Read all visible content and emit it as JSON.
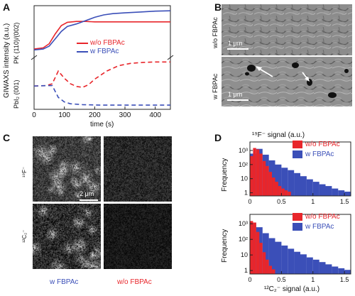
{
  "panels": {
    "A": {
      "letter": "A"
    },
    "B": {
      "letter": "B"
    },
    "C": {
      "letter": "C"
    },
    "D": {
      "letter": "D"
    }
  },
  "panelA": {
    "ylabel_outer": "GIWAXS  intensity (a.u.)",
    "ylabel_top": "PK (110)/(002)",
    "ylabel_bottom": "PbI₂ (001)",
    "xlabel": "time (s)",
    "legend": [
      {
        "label": "w/o FBPAc",
        "color": "#e8262b"
      },
      {
        "label": "w FBPAc",
        "color": "#3b4fb8"
      }
    ]
  },
  "panelB": {
    "top_label": "w/o FBPAc",
    "bottom_label": "w FBPAc",
    "scale_top": "1 μm",
    "scale_bottom": "1 μm"
  },
  "panelC": {
    "row1_label": "¹⁹F⁻",
    "row2_label": "¹²C₂⁻",
    "scale": "2 μm",
    "col1_label": "w FBPAc",
    "col2_label": "w/o FBPAc"
  },
  "panelD": {
    "top_title": "¹⁹F⁻ signal (a.u.)",
    "bottom_xlabel": "¹²C₂⁻ signal (a.u.)",
    "ylabel": "Frequency",
    "legend_top": [
      {
        "label": "w/o FBPAc",
        "color": "#e8262b"
      },
      {
        "label": "w FBPAc",
        "color": "#3b4fb8"
      }
    ],
    "legend_bottom": [
      {
        "label": "w/o FBPAc",
        "color": "#e8262b"
      },
      {
        "label": "w FBPAc",
        "color": "#3b4fb8"
      }
    ]
  },
  "chart_data": [
    {
      "type": "line",
      "panel": "A",
      "xlabel": "time (s)",
      "xlim": [
        0,
        450
      ],
      "xticks": [
        0,
        100,
        200,
        300,
        400
      ],
      "series": [
        {
          "name": "w/o FBPAc",
          "sublabel": "PK (110)/(002)",
          "style": "solid",
          "color": "#e8262b",
          "x": [
            0,
            30,
            50,
            70,
            90,
            110,
            140,
            170,
            200,
            250,
            300,
            350,
            400,
            450
          ],
          "y": [
            0.05,
            0.08,
            0.18,
            0.42,
            0.62,
            0.7,
            0.72,
            0.72,
            0.71,
            0.71,
            0.71,
            0.71,
            0.71,
            0.71
          ]
        },
        {
          "name": "w FBPAc",
          "sublabel": "PK (110)/(002)",
          "style": "solid",
          "color": "#3b4fb8",
          "x": [
            0,
            30,
            50,
            70,
            90,
            110,
            140,
            170,
            200,
            230,
            260,
            300,
            350,
            400,
            450
          ],
          "y": [
            0.03,
            0.05,
            0.12,
            0.3,
            0.48,
            0.6,
            0.66,
            0.74,
            0.82,
            0.88,
            0.91,
            0.93,
            0.95,
            0.97,
            0.98
          ]
        },
        {
          "name": "w/o FBPAc",
          "sublabel": "PbI2 (001)",
          "style": "dashed",
          "color": "#e8262b",
          "x": [
            0,
            40,
            60,
            80,
            100,
            120,
            140,
            160,
            180,
            200,
            240,
            280,
            320,
            360,
            400,
            450
          ],
          "y": [
            0.45,
            0.46,
            0.5,
            0.78,
            0.62,
            0.5,
            0.44,
            0.42,
            0.48,
            0.6,
            0.78,
            0.9,
            0.95,
            0.97,
            0.98,
            0.98
          ]
        },
        {
          "name": "w FBPAc",
          "sublabel": "PbI2 (001)",
          "style": "dashed",
          "color": "#3b4fb8",
          "x": [
            0,
            40,
            60,
            80,
            100,
            120,
            160,
            220,
            300,
            450
          ],
          "y": [
            0.45,
            0.46,
            0.46,
            0.2,
            0.1,
            0.06,
            0.04,
            0.03,
            0.03,
            0.03
          ]
        }
      ]
    },
    {
      "type": "bar",
      "panel": "D-top",
      "xlim": [
        0,
        1.6
      ],
      "xticks": [
        0,
        0.5,
        1.0,
        1.5
      ],
      "yscale": "log",
      "yticks": [
        "1",
        "10",
        "10²",
        "10³"
      ],
      "series": [
        {
          "name": "w/o FBPAc",
          "color": "#e8262b",
          "x": [
            0.0,
            0.05,
            0.1,
            0.15,
            0.2,
            0.25,
            0.3,
            0.35,
            0.4,
            0.45,
            0.5,
            0.55,
            0.6
          ],
          "y": [
            400,
            1500,
            1200,
            600,
            180,
            80,
            30,
            12,
            6,
            3,
            2,
            1.5,
            1.2
          ]
        },
        {
          "name": "w FBPAc",
          "color": "#3b4fb8",
          "x": [
            0.0,
            0.1,
            0.2,
            0.3,
            0.4,
            0.5,
            0.6,
            0.7,
            0.8,
            0.9,
            1.0,
            1.1,
            1.2,
            1.3,
            1.4,
            1.5
          ],
          "y": [
            600,
            1300,
            500,
            200,
            100,
            60,
            40,
            25,
            15,
            9,
            6,
            4,
            3,
            2,
            1.5,
            1.2
          ]
        }
      ]
    },
    {
      "type": "bar",
      "panel": "D-bottom",
      "xlabel": "¹²C₂⁻ signal (a.u.)",
      "xlim": [
        0,
        1.6
      ],
      "xticks": [
        0,
        0.5,
        1.0,
        1.5
      ],
      "yscale": "log",
      "yticks": [
        "1",
        "10",
        "10²",
        "10³"
      ],
      "series": [
        {
          "name": "w/o FBPAc",
          "color": "#e8262b",
          "x": [
            0.0,
            0.05,
            0.1,
            0.15,
            0.2,
            0.25,
            0.3,
            0.35
          ],
          "y": [
            1500,
            1200,
            300,
            60,
            15,
            5,
            2,
            1.2
          ]
        },
        {
          "name": "w FBPAc",
          "color": "#3b4fb8",
          "x": [
            0.0,
            0.1,
            0.2,
            0.3,
            0.4,
            0.5,
            0.6,
            0.7,
            0.8,
            0.9,
            1.0,
            1.1,
            1.2,
            1.3,
            1.4,
            1.5
          ],
          "y": [
            1200,
            600,
            250,
            120,
            70,
            40,
            25,
            16,
            11,
            7,
            5,
            3.5,
            2.5,
            1.8,
            1.4,
            1.1
          ]
        }
      ]
    }
  ]
}
